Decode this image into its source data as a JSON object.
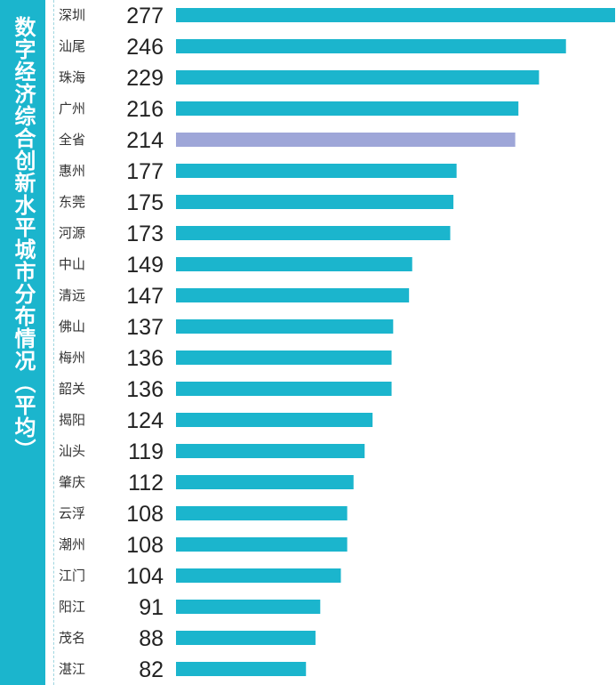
{
  "title": "数字经济综合创新水平城市分布情况（平均）",
  "colors": {
    "bar": "#1bb5cd",
    "highlight_bar": "#9ea6d8",
    "title_panel": "#1bb5cd"
  },
  "chart_data": {
    "type": "bar",
    "orientation": "horizontal",
    "title": "数字经济综合创新水平城市分布情况（平均）",
    "categories": [
      "深圳",
      "汕尾",
      "珠海",
      "广州",
      "全省",
      "惠州",
      "东莞",
      "河源",
      "中山",
      "清远",
      "佛山",
      "梅州",
      "韶关",
      "揭阳",
      "汕头",
      "肇庆",
      "云浮",
      "潮州",
      "江门",
      "阳江",
      "茂名",
      "湛江"
    ],
    "values": [
      277,
      246,
      229,
      216,
      214,
      177,
      175,
      173,
      149,
      147,
      137,
      136,
      136,
      124,
      119,
      112,
      108,
      108,
      104,
      91,
      88,
      82
    ],
    "highlight": "全省",
    "xlim": [
      0,
      277
    ],
    "grid": false,
    "legend": "none"
  }
}
